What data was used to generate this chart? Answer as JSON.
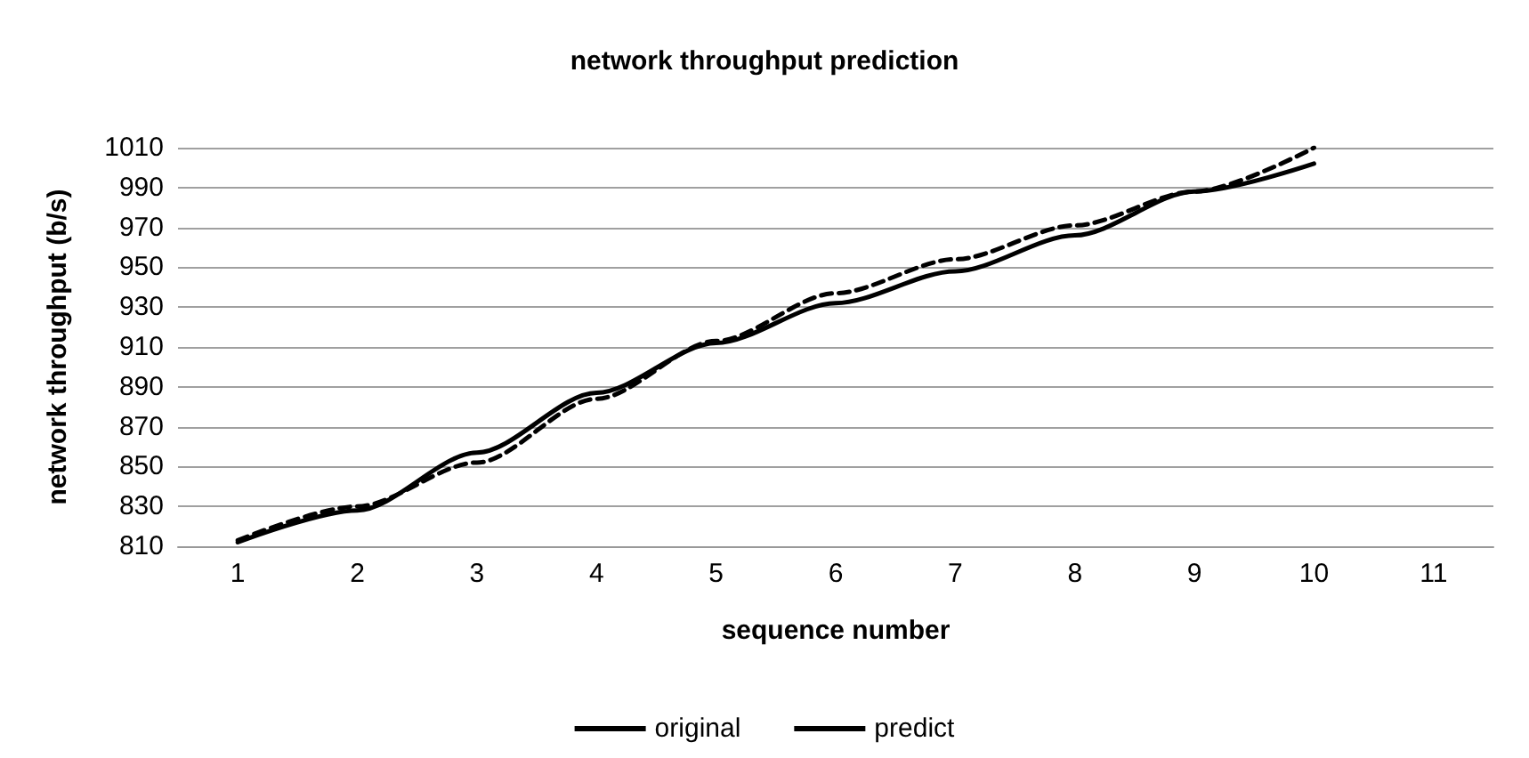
{
  "chart_data": {
    "type": "line",
    "title": "network throughput prediction",
    "xlabel": "sequence number",
    "ylabel": "network throughput (b/s)",
    "categories": [
      "1",
      "2",
      "3",
      "4",
      "5",
      "6",
      "7",
      "8",
      "9",
      "10",
      "11"
    ],
    "series": [
      {
        "name": "original",
        "color": "#000000",
        "line_style": "solid",
        "values": [
          812,
          828,
          857,
          887,
          912,
          932,
          948,
          966,
          988,
          1002,
          null
        ]
      },
      {
        "name": "predict",
        "color": "#000000",
        "line_style": "dashed",
        "values": [
          813,
          830,
          852,
          884,
          913,
          937,
          954,
          971,
          988,
          1010,
          null
        ]
      }
    ],
    "ylim": [
      810,
      1010
    ],
    "yticks": [
      810,
      830,
      850,
      870,
      890,
      910,
      930,
      950,
      970,
      990,
      1010
    ],
    "grid": "y",
    "legend": "bottom",
    "marker": "none"
  }
}
